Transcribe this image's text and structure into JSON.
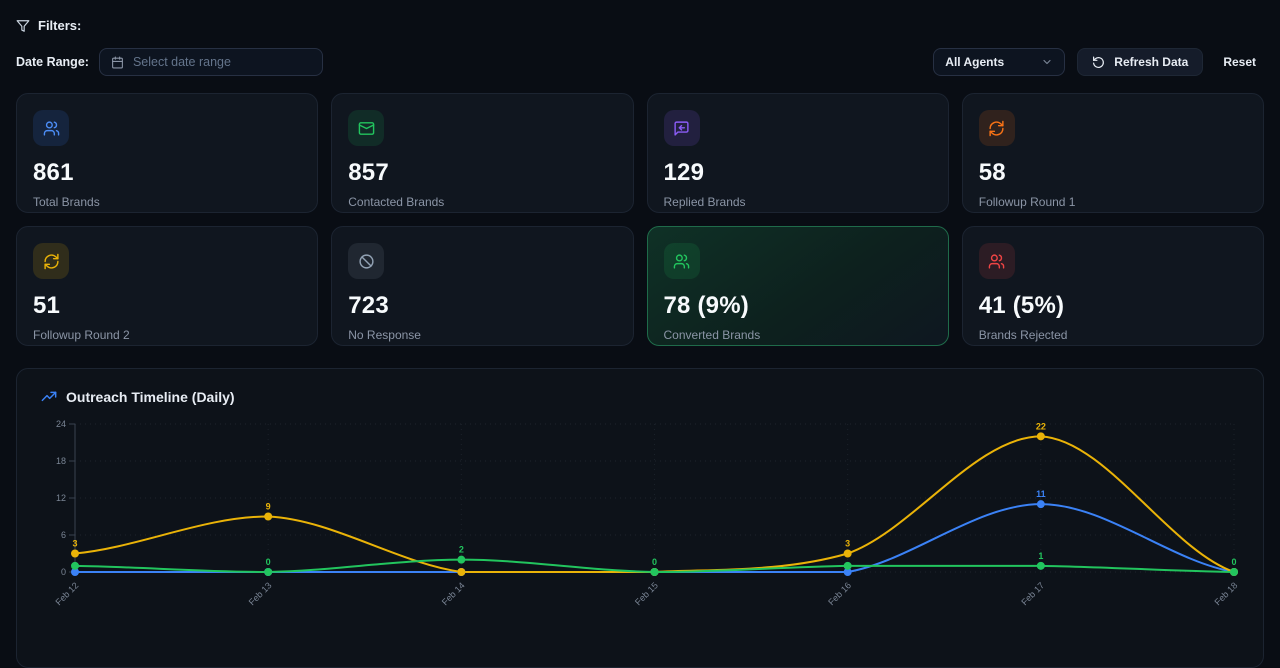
{
  "filters": {
    "title": "Filters:",
    "date_range_label": "Date Range:",
    "date_placeholder": "Select date range",
    "agents_value": "All Agents",
    "refresh_label": "Refresh Data",
    "reset_label": "Reset"
  },
  "stats": [
    {
      "value": "861",
      "label": "Total Brands",
      "icon": "users-icon",
      "accent": "#3b82f6"
    },
    {
      "value": "857",
      "label": "Contacted Brands",
      "icon": "mail-icon",
      "accent": "#22c55e"
    },
    {
      "value": "129",
      "label": "Replied Brands",
      "icon": "reply-chat-icon",
      "accent": "#8b5cf6"
    },
    {
      "value": "58",
      "label": "Followup Round 1",
      "icon": "refresh-icon",
      "accent": "#f97316"
    },
    {
      "value": "51",
      "label": "Followup Round 2",
      "icon": "refresh-icon",
      "accent": "#eab308"
    },
    {
      "value": "723",
      "label": "No Response",
      "icon": "ban-icon",
      "accent": "#94a3b8"
    },
    {
      "value": "78 (9%)",
      "label": "Converted Brands",
      "icon": "users-icon",
      "accent": "#22c55e",
      "highlight": true
    },
    {
      "value": "41 (5%)",
      "label": "Brands Rejected",
      "icon": "users-icon",
      "accent": "#ef4444"
    }
  ],
  "chart": {
    "title": "Outreach Timeline (Daily)"
  },
  "chart_data": {
    "type": "line",
    "title": "Outreach Timeline (Daily)",
    "x": [
      "Feb 12",
      "Feb 13",
      "Feb 14",
      "Feb 15",
      "Feb 16",
      "Feb 17",
      "Feb 18"
    ],
    "series": [
      {
        "name": "yellow-series",
        "color": "#eab308",
        "values": [
          3,
          9,
          0,
          0,
          3,
          22,
          0
        ],
        "labels": [
          3,
          9,
          null,
          null,
          3,
          22,
          null
        ]
      },
      {
        "name": "blue-series",
        "color": "#3b82f6",
        "values": [
          0,
          0,
          0,
          0,
          0,
          11,
          0
        ],
        "labels": [
          null,
          null,
          null,
          null,
          null,
          11,
          null
        ]
      },
      {
        "name": "green-series",
        "color": "#22c55e",
        "values": [
          1,
          0,
          2,
          0,
          1,
          1,
          0
        ],
        "labels": [
          null,
          0,
          2,
          0,
          null,
          1,
          0
        ]
      }
    ],
    "ylim": [
      0,
      24
    ],
    "yticks": [
      0,
      6,
      12,
      18,
      24
    ],
    "grid": true,
    "legend": "none",
    "axis_color": "#39424f",
    "tick_color": "#7a8595"
  }
}
